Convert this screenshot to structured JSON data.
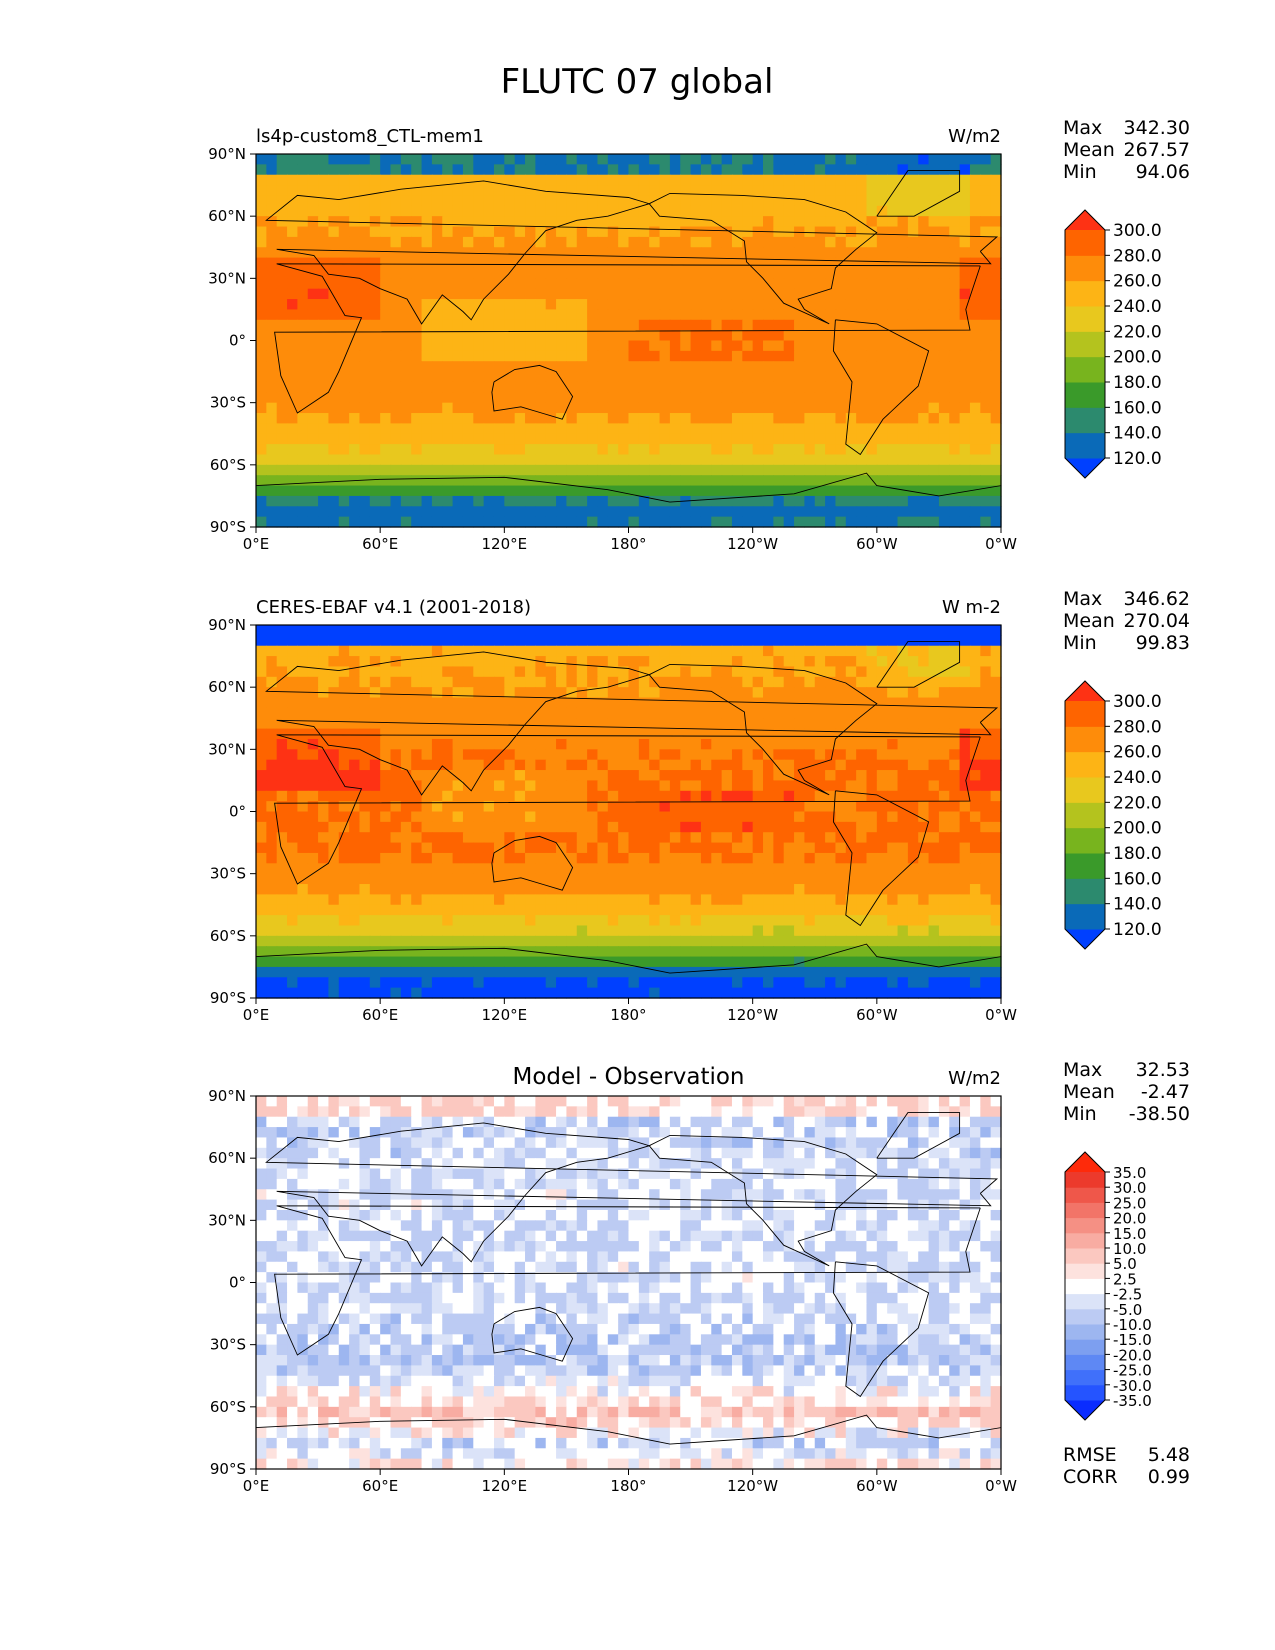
{
  "title": "FLUTC 07 global",
  "chart_data": [
    {
      "type": "heatmap",
      "left_title": "ls4p-custom8_CTL-mem1",
      "center_title": "",
      "units": "W/m2",
      "stats": [
        {
          "label": "Max",
          "value": "342.30"
        },
        {
          "label": "Mean",
          "value": "267.57"
        },
        {
          "label": "Min",
          "value": "94.06"
        }
      ],
      "x_ticks": [
        "0°E",
        "60°E",
        "120°E",
        "180°",
        "120°W",
        "60°W",
        "0°W"
      ],
      "y_ticks": [
        "90°N",
        "60°N",
        "30°N",
        "0°",
        "30°S",
        "60°S",
        "90°S"
      ],
      "lon_range": [
        0,
        360
      ],
      "lat_range": [
        -90,
        90
      ],
      "colorbar": {
        "levels": [
          "120.0",
          "140.0",
          "160.0",
          "180.0",
          "200.0",
          "220.0",
          "240.0",
          "260.0",
          "280.0",
          "300.0"
        ],
        "colors": [
          "#0040ff",
          "#0a6ab8",
          "#2c8a6e",
          "#3a9a2a",
          "#78b41e",
          "#b4c31e",
          "#e8c81e",
          "#fdb415",
          "#fe8c0a",
          "#fe6400",
          "#fe3214"
        ],
        "extend": "both"
      },
      "field_bands": [
        {
          "lat": 80,
          "value": 245
        },
        {
          "lat": 60,
          "value": 255
        },
        {
          "lat": 40,
          "value": 268
        },
        {
          "lat": 20,
          "value": 275
        },
        {
          "lat": 0,
          "value": 265
        },
        {
          "lat": -20,
          "value": 275
        },
        {
          "lat": -40,
          "value": 258
        },
        {
          "lat": -55,
          "value": 235
        },
        {
          "lat": -65,
          "value": 205
        },
        {
          "lat": -72,
          "value": 170
        },
        {
          "lat": -80,
          "value": 130
        },
        {
          "lat": -90,
          "value": 140
        }
      ]
    },
    {
      "type": "heatmap",
      "left_title": "CERES-EBAF v4.1 (2001-2018)",
      "center_title": "",
      "units": "W m-2",
      "stats": [
        {
          "label": "Max",
          "value": "346.62"
        },
        {
          "label": "Mean",
          "value": "270.04"
        },
        {
          "label": "Min",
          "value": "99.83"
        }
      ],
      "x_ticks": [
        "0°E",
        "60°E",
        "120°E",
        "180°",
        "120°W",
        "60°W",
        "0°W"
      ],
      "y_ticks": [
        "90°N",
        "60°N",
        "30°N",
        "0°",
        "30°S",
        "60°S",
        "90°S"
      ],
      "lon_range": [
        0,
        360
      ],
      "lat_range": [
        -90,
        90
      ],
      "colorbar": {
        "levels": [
          "120.0",
          "140.0",
          "160.0",
          "180.0",
          "200.0",
          "220.0",
          "240.0",
          "260.0",
          "280.0",
          "300.0"
        ],
        "colors": [
          "#0040ff",
          "#0a6ab8",
          "#2c8a6e",
          "#3a9a2a",
          "#78b41e",
          "#b4c31e",
          "#e8c81e",
          "#fdb415",
          "#fe8c0a",
          "#fe6400",
          "#fe3214"
        ],
        "extend": "both"
      },
      "field_bands": [
        {
          "lat": 80,
          "value": 255
        },
        {
          "lat": 60,
          "value": 262
        },
        {
          "lat": 40,
          "value": 272
        },
        {
          "lat": 20,
          "value": 282
        },
        {
          "lat": 0,
          "value": 282
        },
        {
          "lat": -20,
          "value": 282
        },
        {
          "lat": -40,
          "value": 262
        },
        {
          "lat": -55,
          "value": 232
        },
        {
          "lat": -65,
          "value": 200
        },
        {
          "lat": -72,
          "value": 168
        },
        {
          "lat": -80,
          "value": 118
        },
        {
          "lat": -90,
          "value": 115
        }
      ]
    },
    {
      "type": "heatmap",
      "left_title": "",
      "center_title": "Model - Observation",
      "units": "W/m2",
      "stats": [
        {
          "label": "Max",
          "value": "32.53"
        },
        {
          "label": "Mean",
          "value": "-2.47"
        },
        {
          "label": "Min",
          "value": "-38.50"
        }
      ],
      "extra_stats": [
        {
          "label": "RMSE",
          "value": "5.48"
        },
        {
          "label": "CORR",
          "value": "0.99"
        }
      ],
      "x_ticks": [
        "0°E",
        "60°E",
        "120°E",
        "180°",
        "120°W",
        "60°W",
        "0°W"
      ],
      "y_ticks": [
        "90°N",
        "60°N",
        "30°N",
        "0°",
        "30°S",
        "60°S",
        "90°S"
      ],
      "lon_range": [
        0,
        360
      ],
      "lat_range": [
        -90,
        90
      ],
      "colorbar": {
        "levels": [
          "-35.0",
          "-30.0",
          "-25.0",
          "-20.0",
          "-15.0",
          "-10.0",
          "-5.0",
          "-2.5",
          "2.5",
          "5.0",
          "10.0",
          "15.0",
          "20.0",
          "25.0",
          "30.0",
          "35.0"
        ],
        "colors": [
          "#0a2cff",
          "#2554ff",
          "#4070fa",
          "#5e88f4",
          "#7d9ff0",
          "#9db6f0",
          "#bccbf3",
          "#dbe3f8",
          "#ffffff",
          "#fde2de",
          "#fbc8c0",
          "#f8aca2",
          "#f59084",
          "#f27468",
          "#ef574a",
          "#ec3a2c",
          "#fe2a0a"
        ],
        "extend": "both"
      },
      "field_bands": [
        {
          "lat": 80,
          "value": -6
        },
        {
          "lat": 60,
          "value": -4
        },
        {
          "lat": 40,
          "value": -3
        },
        {
          "lat": 20,
          "value": -4
        },
        {
          "lat": 0,
          "value": -3
        },
        {
          "lat": -20,
          "value": -5
        },
        {
          "lat": -40,
          "value": -8
        },
        {
          "lat": -55,
          "value": 2
        },
        {
          "lat": -62,
          "value": 8
        },
        {
          "lat": -70,
          "value": 3
        },
        {
          "lat": -78,
          "value": -6
        },
        {
          "lat": -90,
          "value": 4
        }
      ]
    }
  ]
}
